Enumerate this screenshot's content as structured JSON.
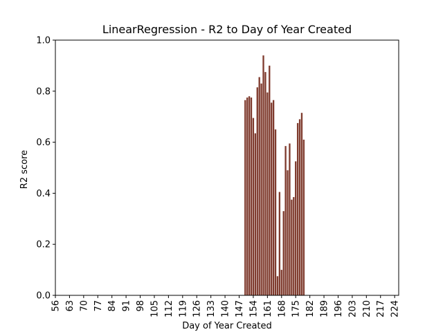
{
  "chart_data": {
    "type": "bar",
    "title": "LinearRegression - R2 to Day of Year Created",
    "xlabel": "Day of Year Created",
    "ylabel": "R2 score",
    "xlim": [
      56,
      226
    ],
    "ylim": [
      0.0,
      1.0
    ],
    "x_ticks": [
      56,
      63,
      70,
      77,
      84,
      91,
      98,
      105,
      112,
      119,
      126,
      133,
      140,
      147,
      154,
      161,
      168,
      175,
      182,
      189,
      196,
      203,
      210,
      217,
      224
    ],
    "y_ticks": [
      0.0,
      0.2,
      0.4,
      0.6,
      0.8,
      1.0
    ],
    "y_tick_labels": [
      "0.0",
      "0.2",
      "0.4",
      "0.6",
      "0.8",
      "1.0"
    ],
    "bar_color": "#7f3b2e",
    "grid": false,
    "x": [
      150,
      151,
      152,
      153,
      154,
      155,
      156,
      157,
      158,
      159,
      160,
      161,
      162,
      163,
      164,
      165,
      166,
      167,
      168,
      169,
      170,
      171,
      172,
      173,
      174,
      175,
      176,
      177,
      178,
      179,
      180
    ],
    "values": [
      0.765,
      0.775,
      0.78,
      0.775,
      0.695,
      0.635,
      0.815,
      0.855,
      0.83,
      0.94,
      0.875,
      0.795,
      0.9,
      0.755,
      0.765,
      0.65,
      0.075,
      0.405,
      0.1,
      0.33,
      0.585,
      0.49,
      0.595,
      0.375,
      0.385,
      0.525,
      0.675,
      0.69,
      0.715,
      0.61,
      0.0
    ]
  }
}
